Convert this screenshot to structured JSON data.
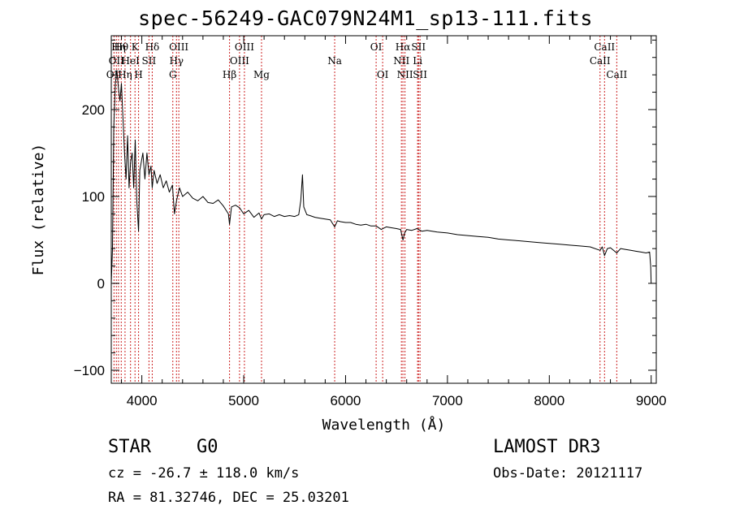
{
  "chart_data": {
    "type": "line",
    "title": "spec-56249-GAC079N24M1_sp13-111.fits",
    "xlabel": "Wavelength (Å)",
    "ylabel": "Flux (relative)",
    "xlim": [
      3700,
      9050
    ],
    "ylim": [
      -115,
      285
    ],
    "xticks": [
      4000,
      5000,
      6000,
      7000,
      8000,
      9000
    ],
    "yticks": [
      -100,
      0,
      100,
      200
    ],
    "series": [
      {
        "name": "flux",
        "x": [
          3700,
          3712,
          3725,
          3740,
          3755,
          3770,
          3785,
          3800,
          3815,
          3830,
          3845,
          3860,
          3875,
          3890,
          3905,
          3920,
          3935,
          3950,
          3968,
          3980,
          3995,
          4010,
          4030,
          4050,
          4070,
          4090,
          4102,
          4120,
          4150,
          4180,
          4210,
          4240,
          4270,
          4300,
          4320,
          4340,
          4370,
          4400,
          4450,
          4500,
          4550,
          4600,
          4650,
          4700,
          4750,
          4800,
          4850,
          4861,
          4880,
          4920,
          4960,
          5000,
          5050,
          5100,
          5150,
          5175,
          5200,
          5250,
          5300,
          5350,
          5400,
          5450,
          5500,
          5540,
          5560,
          5577,
          5590,
          5620,
          5650,
          5700,
          5750,
          5800,
          5850,
          5893,
          5920,
          5950,
          6000,
          6050,
          6100,
          6150,
          6200,
          6250,
          6300,
          6350,
          6400,
          6450,
          6500,
          6540,
          6563,
          6580,
          6600,
          6650,
          6700,
          6750,
          6800,
          6900,
          7000,
          7100,
          7200,
          7300,
          7400,
          7500,
          7600,
          7700,
          7800,
          7900,
          8000,
          8100,
          8200,
          8300,
          8400,
          8498,
          8520,
          8542,
          8570,
          8600,
          8662,
          8700,
          8750,
          8800,
          8850,
          8900,
          8950,
          8985,
          8995,
          9000
        ],
        "y": [
          0,
          40,
          180,
          230,
          245,
          225,
          210,
          230,
          190,
          150,
          120,
          170,
          110,
          140,
          150,
          110,
          165,
          95,
          60,
          130,
          140,
          150,
          120,
          150,
          125,
          135,
          110,
          130,
          115,
          125,
          110,
          118,
          105,
          113,
          80,
          95,
          110,
          100,
          105,
          98,
          95,
          100,
          93,
          92,
          96,
          89,
          80,
          68,
          88,
          90,
          87,
          80,
          84,
          76,
          81,
          74,
          79,
          80,
          77,
          79,
          77,
          78,
          77,
          79,
          95,
          125,
          88,
          79,
          78,
          76,
          75,
          74,
          73,
          65,
          72,
          71,
          70,
          70,
          68,
          67,
          68,
          66,
          66,
          62,
          65,
          64,
          63,
          62,
          50,
          58,
          62,
          61,
          63,
          60,
          61,
          59,
          58,
          56,
          55,
          54,
          53,
          51,
          50,
          49,
          48,
          47,
          46,
          45,
          44,
          43,
          42,
          38,
          42,
          32,
          40,
          41,
          35,
          40,
          39,
          38,
          37,
          36,
          35,
          36,
          20,
          0
        ]
      }
    ],
    "lines": [
      {
        "w": 3727,
        "label": "OII",
        "row": 3
      },
      {
        "w": 3750,
        "label": "OII",
        "row": 2
      },
      {
        "w": 3771,
        "label": "Hη",
        "row": 1
      },
      {
        "w": 3798,
        "label": "Hθ",
        "row": 1
      },
      {
        "w": 3835,
        "label": "Hη",
        "row": 3
      },
      {
        "w": 3889,
        "label": "HeI",
        "row": 2
      },
      {
        "w": 3933,
        "label": "K",
        "row": 1
      },
      {
        "w": 3968,
        "label": "H",
        "row": 3
      },
      {
        "w": 4070,
        "label": "SII",
        "row": 2
      },
      {
        "w": 4102,
        "label": "Hδ",
        "row": 1
      },
      {
        "w": 4304,
        "label": "G",
        "row": 3
      },
      {
        "w": 4340,
        "label": "Hγ",
        "row": 2
      },
      {
        "w": 4363,
        "label": "OIII",
        "row": 1
      },
      {
        "w": 4861,
        "label": "Hβ",
        "row": 3
      },
      {
        "w": 4959,
        "label": "OIII",
        "row": 2
      },
      {
        "w": 5007,
        "label": "OIII",
        "row": 1
      },
      {
        "w": 5175,
        "label": "Mg",
        "row": 3
      },
      {
        "w": 5893,
        "label": "Na",
        "row": 2
      },
      {
        "w": 6300,
        "label": "OI",
        "row": 1
      },
      {
        "w": 6364,
        "label": "OI",
        "row": 3
      },
      {
        "w": 6548,
        "label": "NII",
        "row": 2
      },
      {
        "w": 6563,
        "label": "Hα",
        "row": 1
      },
      {
        "w": 6583,
        "label": "NII",
        "row": 3
      },
      {
        "w": 6707,
        "label": "Li",
        "row": 2
      },
      {
        "w": 6716,
        "label": "SII",
        "row": 1
      },
      {
        "w": 6731,
        "label": "SII",
        "row": 3
      },
      {
        "w": 8498,
        "label": "CaII",
        "row": 2
      },
      {
        "w": 8542,
        "label": "CaII",
        "row": 1
      },
      {
        "w": 8662,
        "label": "CaII",
        "row": 3
      }
    ]
  },
  "info": {
    "class_label": "STAR",
    "subclass": "G0",
    "survey": "LAMOST DR3",
    "velocity": "cz = -26.7 ± 118.0 km/s",
    "obs_date": "Obs-Date: 20121117",
    "coords": "RA =  81.32746, DEC =  25.03201"
  }
}
